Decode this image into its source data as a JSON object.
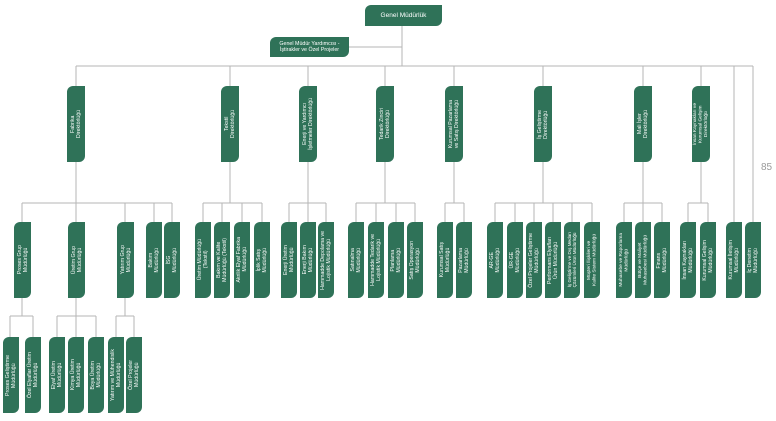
{
  "colors": {
    "node_fill": "#2f7258",
    "node_text": "#ffffff",
    "connector": "#b5b5b5",
    "page_number": "#9a9a9a"
  },
  "page_number": "85",
  "root": {
    "label": "Genel Müdürlük"
  },
  "assistant": {
    "label": "Genel Müdür Yardımcısı -\nİştirakler ve Özel Projeler"
  },
  "directorates": [
    {
      "label": "Fabrika\nDirektörlüğü"
    },
    {
      "label": "Tekstil\nDirektörlüğü"
    },
    {
      "label": "Enerji ve Yardımcı\nİşletmeler Direktörlüğü"
    },
    {
      "label": "Tedarik Zinciri\nDirektörlüğü"
    },
    {
      "label": "Kurumsal Pazarlama\nve Satış Direktörlüğü"
    },
    {
      "label": "İş Geliştirme\nDirektörlüğü"
    },
    {
      "label": "Mali İşler\nDirektörlüğü"
    },
    {
      "label": "İnsan Kaynakları ve\nKurumsal Gelişim\nDirektörlüğü"
    }
  ],
  "departments": [
    {
      "label": "Proses Grup\nMüdürlüğü"
    },
    {
      "label": "Üretim Grup\nMüdürlüğü"
    },
    {
      "label": "Yatırım Grup\nMüdürlüğü"
    },
    {
      "label": "Bakım\nMüdürlüğü"
    },
    {
      "label": "İSG\nMüdürlüğü"
    },
    {
      "label": "Üretim Müdürlüğü\n(Tekstil)"
    },
    {
      "label": "Bakım ve Kalite\nMüdürlüğü (Tekstil)"
    },
    {
      "label": "Akrilik Elyaf Fabrika\nMüdürlüğü"
    },
    {
      "label": "İplik Satış\nMüdürlüğü"
    },
    {
      "label": "Enerji Üretim\nMüdürlüğü"
    },
    {
      "label": "Enerji Bakım\nMüdürlüğü"
    },
    {
      "label": "Hammadde Depolama ve\nLojistik Müdürlüğü"
    },
    {
      "label": "Satınalma\nMüdürlüğü"
    },
    {
      "label": "Hammadde Tedarik ve\nLojistik Müdürlüğü"
    },
    {
      "label": "Planlama\nMüdürlüğü"
    },
    {
      "label": "Satış Operasyon\nMüdürlüğü"
    },
    {
      "label": "Kurumsal Satış\nMüdürlüğü"
    },
    {
      "label": "Pazarlama\nMüdürlüğü"
    },
    {
      "label": "AR-GE\nMüdürlüğü"
    },
    {
      "label": "ÜR-GE\nMüdürlüğü"
    },
    {
      "label": "Özel Projeler Geliştirme\nMüdürlüğü"
    },
    {
      "label": "Performans Elyafları\nÜrün Müdürlüğü"
    },
    {
      "label": "İş Geliştirme ve Dış Medarı\nÇözümleri Ürün Müdürlüğü"
    },
    {
      "label": "Müşteri İlişkileri ve\nKalite Sistem Müdürlüğü"
    },
    {
      "label": "Muhasebe ve Raporlama\nMüdürlüğü"
    },
    {
      "label": "Bütçe ve Maliyet\nMuhasebesi Müdürlüğü"
    },
    {
      "label": "Finans\nMüdürlüğü"
    },
    {
      "label": "İnsan Kaynakları\nMüdürlüğü"
    },
    {
      "label": "Kurumsal Gelişim\nMüdürlüğü"
    },
    {
      "label": "Kurumsal İletişim\nMüdürlüğü"
    },
    {
      "label": "İç Denetim\nMüdürlüğü"
    }
  ],
  "units": [
    {
      "label": "Proses Geliştirme\nMüdürlüğü"
    },
    {
      "label": "Özel Elyaflar Üretim\nMüdürlüğü"
    },
    {
      "label": "Elyaf Üretim\nMüdürlüğü"
    },
    {
      "label": "Kimya Üretim\nMüdürlüğü"
    },
    {
      "label": "Boya Üretim\nMüdürlüğü"
    },
    {
      "label": "Yatırım ve Mühendislik\nMüdürlüğü"
    },
    {
      "label": "Özel Projeler\nMüdürlüğü"
    }
  ]
}
